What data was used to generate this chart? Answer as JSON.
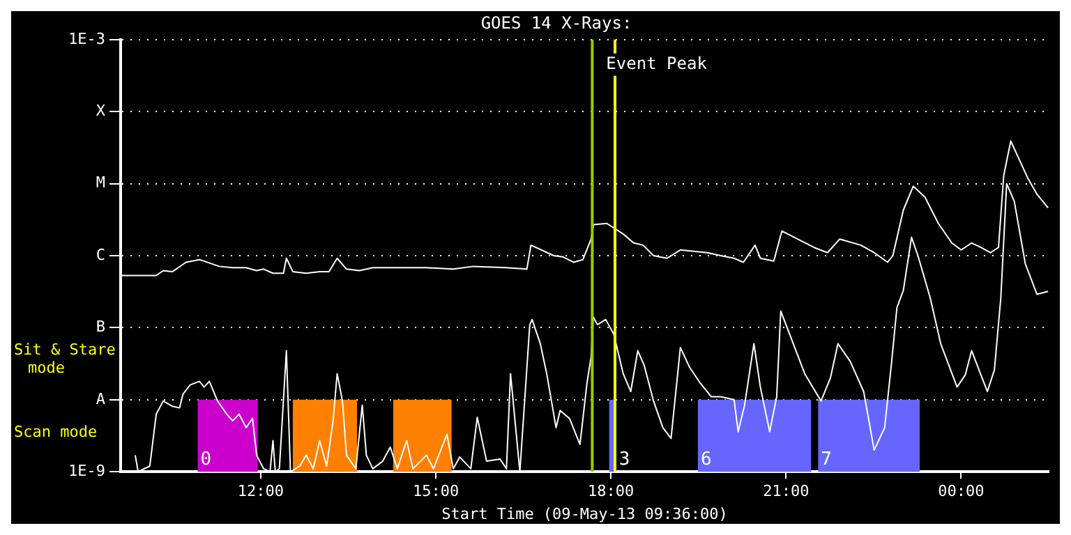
{
  "chart_data": {
    "type": "line",
    "title": "GOES 14 X-Rays:",
    "xlabel": "Start Time (09-May-13 09:36:00)",
    "log": "y",
    "grid": "y",
    "legend": false,
    "marker": "none",
    "line_style": "solid",
    "xlim": [
      9.6,
      25.5
    ],
    "xticks": [
      {
        "value": 12,
        "label": "12:00"
      },
      {
        "value": 15,
        "label": "15:00"
      },
      {
        "value": 18,
        "label": "18:00"
      },
      {
        "value": 21,
        "label": "21:00"
      },
      {
        "value": 24,
        "label": "00:00"
      }
    ],
    "ylim": [
      1e-09,
      0.001
    ],
    "yticks": [
      {
        "value": 1e-09,
        "label": "1E-9"
      },
      {
        "value": 1e-08,
        "label": "A"
      },
      {
        "value": 1e-07,
        "label": "B"
      },
      {
        "value": 1e-06,
        "label": "C"
      },
      {
        "value": 1e-05,
        "label": "M"
      },
      {
        "value": 0.0001,
        "label": "X"
      },
      {
        "value": 0.001,
        "label": "1E-3"
      }
    ],
    "series": [
      {
        "color": "#ffffff",
        "x": [
          9.6,
          10.21,
          10.33,
          10.49,
          10.72,
          10.95,
          11.03,
          11.29,
          11.52,
          11.75,
          11.93,
          12.05,
          12.21,
          12.39,
          12.44,
          12.55,
          12.78,
          13.01,
          13.17,
          13.31,
          13.47,
          13.69,
          13.92,
          14.27,
          14.73,
          14.84,
          15.3,
          15.64,
          16.21,
          16.56,
          16.63,
          17.02,
          17.18,
          17.36,
          17.52,
          17.66,
          17.7,
          17.93,
          18.21,
          18.39,
          18.55,
          18.73,
          18.96,
          19.19,
          19.65,
          19.88,
          20.11,
          20.27,
          20.47,
          20.56,
          20.79,
          20.93,
          21.14,
          21.48,
          21.71,
          21.92,
          22.28,
          22.51,
          22.74,
          22.83,
          23.01,
          23.18,
          23.38,
          23.61,
          23.84,
          24.0,
          24.18,
          24.34,
          24.5,
          24.64,
          24.73,
          24.85,
          24.98,
          25.14,
          25.3,
          25.49
        ],
        "values": [
          5.3e-07,
          5.3e-07,
          6.2e-07,
          6e-07,
          8.1e-07,
          8.8e-07,
          8.4e-07,
          7.1e-07,
          6.8e-07,
          6.8e-07,
          6.2e-07,
          6.5e-07,
          5.7e-07,
          5.7e-07,
          9.2e-07,
          6e-07,
          5.7e-07,
          6e-07,
          6e-07,
          9.2e-07,
          6.5e-07,
          6.2e-07,
          6.8e-07,
          6.8e-07,
          6.8e-07,
          6.8e-07,
          6.5e-07,
          7.1e-07,
          6.8e-07,
          6.5e-07,
          1.4e-06,
          1e-06,
          9.6e-07,
          8.1e-07,
          8.8e-07,
          1.7e-06,
          2.7e-06,
          2.8e-06,
          2e-06,
          1.5e-06,
          1.4e-06,
          1e-06,
          9.2e-07,
          1.2e-06,
          1.1e-06,
          1e-06,
          9.2e-07,
          8.1e-07,
          1.4e-06,
          9.2e-07,
          8.4e-07,
          2.2e-06,
          1.8e-06,
          1.3e-06,
          1.1e-06,
          1.7e-06,
          1.4e-06,
          1.1e-06,
          8.1e-07,
          1e-06,
          4.3e-06,
          9.2e-06,
          6.5e-06,
          2.8e-06,
          1.5e-06,
          1.2e-06,
          1.5e-06,
          1.3e-06,
          1.1e-06,
          1.3e-06,
          1.3e-05,
          3.9e-05,
          2.3e-05,
          1.2e-05,
          7.1e-06,
          4.6e-06
        ]
      },
      {
        "color": "#ffffff",
        "x": [
          9.85,
          9.9,
          10.1,
          10.21,
          10.33,
          10.49,
          10.61,
          10.67,
          10.79,
          10.95,
          11.03,
          11.12,
          11.26,
          11.42,
          11.52,
          11.63,
          11.75,
          11.86,
          11.93,
          12.05,
          12.16,
          12.21,
          12.25,
          12.32,
          12.44,
          12.51,
          12.67,
          12.78,
          12.9,
          13.01,
          13.13,
          13.24,
          13.31,
          13.4,
          13.47,
          13.63,
          13.74,
          13.81,
          13.92,
          14.09,
          14.22,
          14.34,
          14.5,
          14.61,
          14.84,
          14.96,
          15.19,
          15.3,
          15.41,
          15.6,
          15.71,
          15.87,
          16.1,
          16.21,
          16.28,
          16.44,
          16.61,
          16.65,
          16.79,
          16.9,
          17.06,
          17.13,
          17.29,
          17.47,
          17.59,
          17.66,
          17.7,
          17.77,
          17.91,
          18.05,
          18.21,
          18.34,
          18.46,
          18.57,
          18.73,
          18.89,
          19.03,
          19.19,
          19.35,
          19.53,
          19.72,
          19.88,
          20.11,
          20.18,
          20.29,
          20.45,
          20.56,
          20.72,
          20.84,
          20.91,
          21.09,
          21.32,
          21.6,
          21.76,
          21.89,
          22.1,
          22.33,
          22.51,
          22.69,
          22.81,
          22.9,
          23.01,
          23.15,
          23.26,
          23.47,
          23.65,
          23.93,
          24.07,
          24.18,
          24.34,
          24.45,
          24.57,
          24.68,
          24.78,
          24.91,
          25.1,
          25.3,
          25.49
        ],
        "values": [
          1.7e-09,
          1e-09,
          1.2e-09,
          6.3e-09,
          9.6e-09,
          8.1e-09,
          7.7e-09,
          1.2e-08,
          1.6e-08,
          1.8e-08,
          1.5e-08,
          1.8e-08,
          9.6e-09,
          6.3e-09,
          5.1e-09,
          6.3e-09,
          4.1e-09,
          5.5e-09,
          1.7e-09,
          1.1e-09,
          1e-09,
          2.7e-09,
          1e-09,
          1.1e-09,
          4.8e-08,
          1e-09,
          1.2e-09,
          1.7e-09,
          1.1e-09,
          2.7e-09,
          1.2e-09,
          5.1e-09,
          2.3e-08,
          9.6e-09,
          1.7e-09,
          1.1e-09,
          8.4e-09,
          1.7e-09,
          1.1e-09,
          1.4e-09,
          2.2e-09,
          1.1e-09,
          2.7e-09,
          1.1e-09,
          1.7e-09,
          1.1e-09,
          3.3e-09,
          1.1e-09,
          1.6e-09,
          1.1e-09,
          5.7e-09,
          1.4e-09,
          1.5e-09,
          1.1e-09,
          2.3e-08,
          1e-09,
          1.1e-07,
          1.3e-07,
          6e-08,
          2.3e-08,
          4.1e-09,
          7.1e-09,
          5.5e-09,
          2.4e-09,
          1.7e-08,
          3.9e-08,
          1.4e-07,
          1.1e-07,
          1.3e-07,
          8.1e-08,
          2.3e-08,
          1.3e-08,
          4.8e-08,
          3e-08,
          9.6e-09,
          4.1e-09,
          2.9e-09,
          5.3e-08,
          2.8e-08,
          1.7e-08,
          1.1e-08,
          1.1e-08,
          1e-08,
          3.6e-09,
          8.4e-09,
          6e-08,
          1.5e-08,
          3.6e-09,
          1.1e-08,
          1.7e-07,
          7.1e-08,
          2.3e-08,
          9.6e-09,
          2e-08,
          6e-08,
          3.4e-08,
          1.3e-08,
          2e-09,
          4.1e-09,
          3.4e-08,
          1.9e-07,
          3.3e-07,
          1.8e-06,
          1e-06,
          2.6e-07,
          6e-08,
          1.5e-08,
          2.2e-08,
          4.8e-08,
          2.2e-08,
          1.3e-08,
          2.6e-08,
          2.6e-07,
          1e-05,
          5.7e-06,
          7.7e-07,
          2.9e-07,
          3.2e-07
        ]
      }
    ],
    "ref_lines": [
      {
        "axis": "x",
        "value": 17.68,
        "label": "Event Peak",
        "color": "#99cc00"
      },
      {
        "axis": "x",
        "value": 18.07,
        "color": "#ffff00"
      }
    ],
    "bands": [
      {
        "axis": "x",
        "from": 10.92,
        "to": 11.95,
        "label": "0",
        "color": "#cc00cc"
      },
      {
        "axis": "x",
        "from": 12.55,
        "to": 13.65,
        "color": "#ff8000"
      },
      {
        "axis": "x",
        "from": 14.27,
        "to": 15.27,
        "color": "#ff8000"
      },
      {
        "axis": "x",
        "from": 17.97,
        "to": 18.09,
        "label": "3",
        "color": "#6666ff"
      },
      {
        "axis": "x",
        "from": 19.49,
        "to": 21.43,
        "label": "6",
        "color": "#6666ff"
      },
      {
        "axis": "x",
        "from": 21.55,
        "to": 23.29,
        "label": "7",
        "color": "#6666ff"
      }
    ],
    "annotations": [
      "Sit & Stare mode",
      "Scan mode"
    ]
  }
}
